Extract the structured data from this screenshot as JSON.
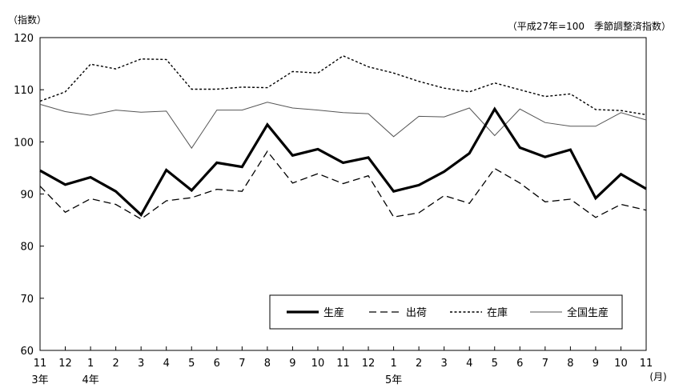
{
  "chart_data": {
    "type": "line",
    "y_axis_label": "（指数）",
    "note": "（平成27年=100　季節調整済指数）",
    "ylim": [
      60,
      120
    ],
    "y_ticks": [
      "60",
      "70",
      "80",
      "90",
      "100",
      "110",
      "120"
    ],
    "categories": [
      "11",
      "12",
      "1",
      "2",
      "3",
      "4",
      "5",
      "6",
      "7",
      "8",
      "9",
      "10",
      "11",
      "12",
      "1",
      "2",
      "3",
      "4",
      "5",
      "6",
      "7",
      "8",
      "9",
      "10",
      "11"
    ],
    "year_labels": [
      {
        "index": 0,
        "text": "3年"
      },
      {
        "index": 2,
        "text": "4年"
      },
      {
        "index": 14,
        "text": "5年"
      }
    ],
    "month_unit": "(月)",
    "grid": false,
    "legend_position": "bottom-right",
    "series": [
      {
        "name": "生産",
        "style": "thick-solid",
        "color": "#000000",
        "values": [
          94.5,
          91.8,
          93.2,
          90.5,
          86.0,
          94.6,
          90.7,
          96.0,
          95.2,
          103.3,
          97.4,
          98.6,
          96.0,
          97.0,
          90.5,
          91.7,
          94.3,
          97.8,
          106.3,
          98.9,
          97.1,
          98.5,
          89.2,
          93.8,
          91.0
        ]
      },
      {
        "name": "出荷",
        "style": "dashed",
        "color": "#000000",
        "values": [
          91.5,
          86.5,
          89.1,
          88.0,
          85.2,
          88.7,
          89.3,
          90.9,
          90.5,
          98.2,
          92.1,
          93.9,
          92.0,
          93.5,
          85.6,
          86.4,
          89.7,
          88.2,
          94.9,
          92.1,
          88.5,
          89.0,
          85.5,
          88.0,
          86.9
        ]
      },
      {
        "name": "在庫",
        "style": "dotted",
        "color": "#000000",
        "values": [
          107.8,
          109.6,
          114.9,
          114.0,
          115.9,
          115.8,
          110.1,
          110.1,
          110.5,
          110.4,
          113.5,
          113.2,
          116.5,
          114.4,
          113.2,
          111.6,
          110.3,
          109.6,
          111.3,
          110.0,
          108.7,
          109.2,
          106.2,
          106.0,
          105.2
        ]
      },
      {
        "name": "全国生産",
        "style": "thin-solid",
        "color": "#555555",
        "values": [
          107.2,
          105.8,
          105.1,
          106.1,
          105.7,
          105.9,
          98.8,
          106.1,
          106.1,
          107.6,
          106.5,
          106.1,
          105.6,
          105.4,
          101.0,
          104.9,
          104.8,
          106.5,
          101.2,
          106.3,
          103.7,
          103.0,
          103.0,
          105.6,
          104.2
        ]
      }
    ]
  }
}
